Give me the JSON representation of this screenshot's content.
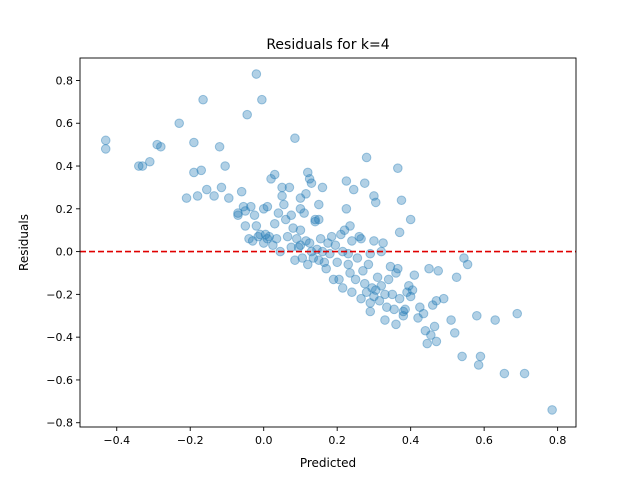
{
  "chart_data": {
    "type": "scatter",
    "title": "Residuals for k=4",
    "xlabel": "Predicted",
    "ylabel": "Residuals",
    "xlim": [
      -0.5,
      0.85
    ],
    "ylim": [
      -0.82,
      0.905
    ],
    "xticks": [
      -0.4,
      -0.2,
      0.0,
      0.2,
      0.4,
      0.6,
      0.8
    ],
    "xtick_labels": [
      "−0.4",
      "−0.2",
      "0.0",
      "0.2",
      "0.4",
      "0.6",
      "0.8"
    ],
    "yticks": [
      -0.8,
      -0.6,
      -0.4,
      -0.2,
      0.0,
      0.2,
      0.4,
      0.6,
      0.8
    ],
    "ytick_labels": [
      "−0.8",
      "−0.6",
      "−0.4",
      "−0.2",
      "0.0",
      "0.2",
      "0.4",
      "0.6",
      "0.8"
    ],
    "grid": false,
    "point_color": "#1f77b4",
    "point_alpha": 0.35,
    "reference_line": {
      "y": 0,
      "color": "#e00000",
      "style": "dashed"
    },
    "series": [
      {
        "points": [
          [
            -0.43,
            0.52
          ],
          [
            -0.43,
            0.48
          ],
          [
            -0.34,
            0.4
          ],
          [
            -0.33,
            0.4
          ],
          [
            -0.31,
            0.42
          ],
          [
            -0.29,
            0.5
          ],
          [
            -0.28,
            0.49
          ],
          [
            -0.23,
            0.6
          ],
          [
            -0.21,
            0.25
          ],
          [
            -0.19,
            0.51
          ],
          [
            -0.19,
            0.37
          ],
          [
            -0.18,
            0.26
          ],
          [
            -0.17,
            0.38
          ],
          [
            -0.165,
            0.71
          ],
          [
            -0.155,
            0.29
          ],
          [
            -0.135,
            0.26
          ],
          [
            -0.12,
            0.49
          ],
          [
            -0.115,
            0.3
          ],
          [
            -0.105,
            0.4
          ],
          [
            -0.095,
            0.25
          ],
          [
            -0.07,
            0.17
          ],
          [
            -0.07,
            0.18
          ],
          [
            -0.06,
            0.28
          ],
          [
            -0.055,
            0.21
          ],
          [
            -0.05,
            0.19
          ],
          [
            -0.05,
            0.12
          ],
          [
            -0.045,
            0.64
          ],
          [
            -0.04,
            0.06
          ],
          [
            -0.035,
            0.21
          ],
          [
            -0.03,
            0.05
          ],
          [
            -0.025,
            0.17
          ],
          [
            -0.02,
            0.83
          ],
          [
            -0.02,
            0.12
          ],
          [
            -0.015,
            0.07
          ],
          [
            -0.01,
            0.08
          ],
          [
            -0.005,
            0.71
          ],
          [
            0.0,
            0.2
          ],
          [
            0.0,
            0.04
          ],
          [
            0.005,
            0.08
          ],
          [
            0.01,
            0.21
          ],
          [
            0.01,
            0.06
          ],
          [
            0.015,
            0.07
          ],
          [
            0.02,
            0.34
          ],
          [
            0.025,
            0.03
          ],
          [
            0.03,
            0.36
          ],
          [
            0.03,
            0.13
          ],
          [
            0.035,
            0.06
          ],
          [
            0.04,
            0.18
          ],
          [
            0.045,
            0.0
          ],
          [
            0.05,
            0.3
          ],
          [
            0.05,
            0.26
          ],
          [
            0.055,
            0.22
          ],
          [
            0.06,
            0.15
          ],
          [
            0.065,
            0.07
          ],
          [
            0.07,
            0.3
          ],
          [
            0.075,
            0.17
          ],
          [
            0.075,
            0.02
          ],
          [
            0.08,
            0.11
          ],
          [
            0.085,
            -0.04
          ],
          [
            0.085,
            0.53
          ],
          [
            0.09,
            0.06
          ],
          [
            0.095,
            0.02
          ],
          [
            0.1,
            0.25
          ],
          [
            0.1,
            0.2
          ],
          [
            0.1,
            0.1
          ],
          [
            0.1,
            0.03
          ],
          [
            0.105,
            -0.03
          ],
          [
            0.11,
            0.18
          ],
          [
            0.115,
            0.27
          ],
          [
            0.115,
            0.05
          ],
          [
            0.12,
            0.37
          ],
          [
            0.12,
            -0.06
          ],
          [
            0.125,
            0.34
          ],
          [
            0.125,
            0.04
          ],
          [
            0.13,
            0.32
          ],
          [
            0.13,
            0.0
          ],
          [
            0.135,
            -0.03
          ],
          [
            0.14,
            0.15
          ],
          [
            0.14,
            0.14
          ],
          [
            0.145,
            0.01
          ],
          [
            0.15,
            0.22
          ],
          [
            0.15,
            0.15
          ],
          [
            0.15,
            -0.04
          ],
          [
            0.155,
            0.06
          ],
          [
            0.16,
            0.3
          ],
          [
            0.16,
            0.0
          ],
          [
            0.165,
            -0.05
          ],
          [
            0.17,
            -0.08
          ],
          [
            0.175,
            0.04
          ],
          [
            0.18,
            -0.01
          ],
          [
            0.185,
            0.07
          ],
          [
            0.19,
            -0.13
          ],
          [
            0.195,
            0.03
          ],
          [
            0.2,
            -0.05
          ],
          [
            0.205,
            -0.13
          ],
          [
            0.21,
            0.08
          ],
          [
            0.215,
            -0.17
          ],
          [
            0.215,
            0.0
          ],
          [
            0.22,
            0.1
          ],
          [
            0.225,
            0.33
          ],
          [
            0.225,
            0.2
          ],
          [
            0.23,
            -0.06
          ],
          [
            0.23,
            -0.01
          ],
          [
            0.235,
            0.12
          ],
          [
            0.235,
            -0.1
          ],
          [
            0.24,
            -0.19
          ],
          [
            0.24,
            0.05
          ],
          [
            0.245,
            0.29
          ],
          [
            0.25,
            -0.13
          ],
          [
            0.255,
            -0.03
          ],
          [
            0.26,
            0.07
          ],
          [
            0.265,
            0.06
          ],
          [
            0.265,
            -0.22
          ],
          [
            0.27,
            -0.09
          ],
          [
            0.275,
            0.32
          ],
          [
            0.275,
            -0.15
          ],
          [
            0.28,
            0.44
          ],
          [
            0.28,
            -0.19
          ],
          [
            0.285,
            -0.06
          ],
          [
            0.29,
            -0.24
          ],
          [
            0.29,
            -0.28
          ],
          [
            0.29,
            -0.01
          ],
          [
            0.295,
            -0.17
          ],
          [
            0.3,
            0.26
          ],
          [
            0.3,
            -0.21
          ],
          [
            0.3,
            0.05
          ],
          [
            0.305,
            0.23
          ],
          [
            0.305,
            -0.18
          ],
          [
            0.31,
            -0.12
          ],
          [
            0.315,
            -0.23
          ],
          [
            0.32,
            -0.16
          ],
          [
            0.32,
            0.0
          ],
          [
            0.325,
            0.04
          ],
          [
            0.33,
            -0.2
          ],
          [
            0.33,
            -0.32
          ],
          [
            0.335,
            -0.26
          ],
          [
            0.34,
            -0.13
          ],
          [
            0.345,
            -0.07
          ],
          [
            0.35,
            -0.2
          ],
          [
            0.355,
            -0.27
          ],
          [
            0.36,
            -0.34
          ],
          [
            0.36,
            -0.1
          ],
          [
            0.365,
            0.39
          ],
          [
            0.365,
            -0.08
          ],
          [
            0.37,
            0.09
          ],
          [
            0.37,
            -0.22
          ],
          [
            0.375,
            0.24
          ],
          [
            0.38,
            -0.28
          ],
          [
            0.38,
            -0.3
          ],
          [
            0.385,
            -0.27
          ],
          [
            0.39,
            -0.19
          ],
          [
            0.395,
            -0.16
          ],
          [
            0.4,
            0.15
          ],
          [
            0.4,
            -0.21
          ],
          [
            0.405,
            -0.18
          ],
          [
            0.41,
            -0.11
          ],
          [
            0.42,
            -0.31
          ],
          [
            0.425,
            -0.26
          ],
          [
            0.435,
            -0.29
          ],
          [
            0.44,
            -0.37
          ],
          [
            0.445,
            -0.43
          ],
          [
            0.45,
            -0.08
          ],
          [
            0.455,
            -0.39
          ],
          [
            0.46,
            -0.25
          ],
          [
            0.465,
            -0.35
          ],
          [
            0.47,
            -0.42
          ],
          [
            0.47,
            -0.23
          ],
          [
            0.475,
            -0.09
          ],
          [
            0.49,
            -0.22
          ],
          [
            0.51,
            -0.32
          ],
          [
            0.52,
            -0.38
          ],
          [
            0.525,
            -0.12
          ],
          [
            0.54,
            -0.49
          ],
          [
            0.545,
            -0.03
          ],
          [
            0.555,
            -0.06
          ],
          [
            0.58,
            -0.3
          ],
          [
            0.585,
            -0.53
          ],
          [
            0.59,
            -0.49
          ],
          [
            0.63,
            -0.32
          ],
          [
            0.655,
            -0.57
          ],
          [
            0.69,
            -0.29
          ],
          [
            0.71,
            -0.57
          ],
          [
            0.785,
            -0.74
          ]
        ]
      }
    ]
  }
}
